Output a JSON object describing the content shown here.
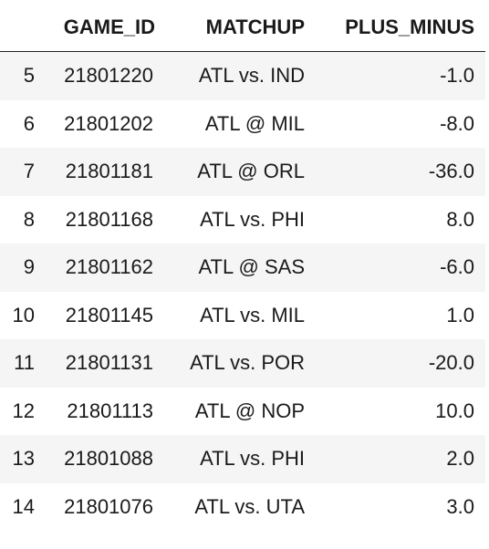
{
  "table": {
    "columns": [
      "",
      "GAME_ID",
      "MATCHUP",
      "PLUS_MINUS"
    ],
    "rows": [
      {
        "index": "5",
        "game_id": "21801220",
        "matchup": "ATL vs. IND",
        "plus_minus": "-1.0"
      },
      {
        "index": "6",
        "game_id": "21801202",
        "matchup": "ATL @ MIL",
        "plus_minus": "-8.0"
      },
      {
        "index": "7",
        "game_id": "21801181",
        "matchup": "ATL @ ORL",
        "plus_minus": "-36.0"
      },
      {
        "index": "8",
        "game_id": "21801168",
        "matchup": "ATL vs. PHI",
        "plus_minus": "8.0"
      },
      {
        "index": "9",
        "game_id": "21801162",
        "matchup": "ATL @ SAS",
        "plus_minus": "-6.0"
      },
      {
        "index": "10",
        "game_id": "21801145",
        "matchup": "ATL vs. MIL",
        "plus_minus": "1.0"
      },
      {
        "index": "11",
        "game_id": "21801131",
        "matchup": "ATL vs. POR",
        "plus_minus": "-20.0"
      },
      {
        "index": "12",
        "game_id": "21801113",
        "matchup": "ATL @ NOP",
        "plus_minus": "10.0"
      },
      {
        "index": "13",
        "game_id": "21801088",
        "matchup": "ATL vs. PHI",
        "plus_minus": "2.0"
      },
      {
        "index": "14",
        "game_id": "21801076",
        "matchup": "ATL vs. UTA",
        "plus_minus": "3.0"
      }
    ]
  },
  "colors": {
    "stripe": "#f5f5f5",
    "background": "#ffffff",
    "text": "#1a1a1a",
    "header_rule": "#222222"
  }
}
